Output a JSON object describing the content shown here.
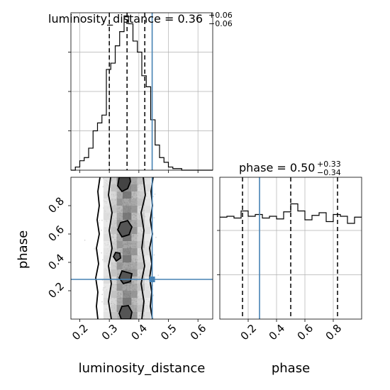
{
  "chart_data": [
    {
      "type": "histogram",
      "panel": "top-left",
      "title_main": "luminosity_distance = 0.36",
      "title_sup": "+0.06",
      "title_sub": "−0.06",
      "xlim": [
        0.17,
        0.65
      ],
      "ylim": [
        0,
        1.0
      ],
      "grid": true,
      "bin_edges": [
        0.17,
        0.185,
        0.2,
        0.215,
        0.23,
        0.245,
        0.26,
        0.275,
        0.29,
        0.305,
        0.32,
        0.335,
        0.35,
        0.365,
        0.38,
        0.395,
        0.41,
        0.425,
        0.44,
        0.455,
        0.47,
        0.485,
        0.5,
        0.515,
        0.53,
        0.545,
        0.56,
        0.575,
        0.59,
        0.605,
        0.62,
        0.635,
        0.65
      ],
      "counts": [
        0.0,
        0.02,
        0.06,
        0.08,
        0.14,
        0.25,
        0.3,
        0.35,
        0.64,
        0.68,
        0.79,
        0.88,
        0.98,
        0.93,
        0.82,
        0.75,
        0.6,
        0.53,
        0.32,
        0.16,
        0.08,
        0.05,
        0.02,
        0.01,
        0.01,
        0.0,
        0.0,
        0.0,
        0.0,
        0.0,
        0.0,
        0.0
      ],
      "quantile_lines": [
        0.3,
        0.36,
        0.42
      ],
      "truth_value": 0.445
    },
    {
      "type": "scatter-contour",
      "panel": "bottom-left",
      "xlabel": "luminosity_distance",
      "ylabel": "phase",
      "xlim": [
        0.17,
        0.65
      ],
      "ylim": [
        0.0,
        1.0
      ],
      "xticks": [
        "0.2",
        "0.3",
        "0.4",
        "0.5",
        "0.6"
      ],
      "xtick_values": [
        0.2,
        0.3,
        0.4,
        0.5,
        0.6
      ],
      "yticks": [
        "0.2",
        "0.4",
        "0.6",
        "0.8"
      ],
      "ytick_values": [
        0.2,
        0.4,
        0.6,
        0.8
      ],
      "truth": {
        "x": 0.445,
        "y": 0.28
      }
    },
    {
      "type": "histogram",
      "panel": "bottom-right",
      "title_main": "phase = 0.50",
      "title_sup": "+0.33",
      "title_sub": "−0.34",
      "xlabel": "phase",
      "xlim": [
        0.0,
        1.0
      ],
      "ylim": [
        0,
        1.6
      ],
      "grid": true,
      "xticks": [
        "0.2",
        "0.4",
        "0.6",
        "0.8"
      ],
      "xtick_values": [
        0.2,
        0.4,
        0.6,
        0.8
      ],
      "bin_edges": [
        0.0,
        0.05,
        0.1,
        0.15,
        0.2,
        0.25,
        0.3,
        0.35,
        0.4,
        0.45,
        0.5,
        0.55,
        0.6,
        0.65,
        0.7,
        0.75,
        0.8,
        0.85,
        0.9,
        0.95,
        1.0
      ],
      "counts": [
        1.15,
        1.16,
        1.14,
        1.22,
        1.16,
        1.18,
        1.14,
        1.16,
        1.13,
        1.21,
        1.3,
        1.22,
        1.12,
        1.17,
        1.2,
        1.1,
        1.18,
        1.16,
        1.08,
        1.15
      ],
      "quantile_lines": [
        0.16,
        0.5,
        0.83
      ],
      "truth_value": 0.28
    }
  ],
  "colors": {
    "line": "#000000",
    "truth": "#4682b4",
    "grid": "#b0b0b0",
    "scatter": "#bbbbbb"
  }
}
